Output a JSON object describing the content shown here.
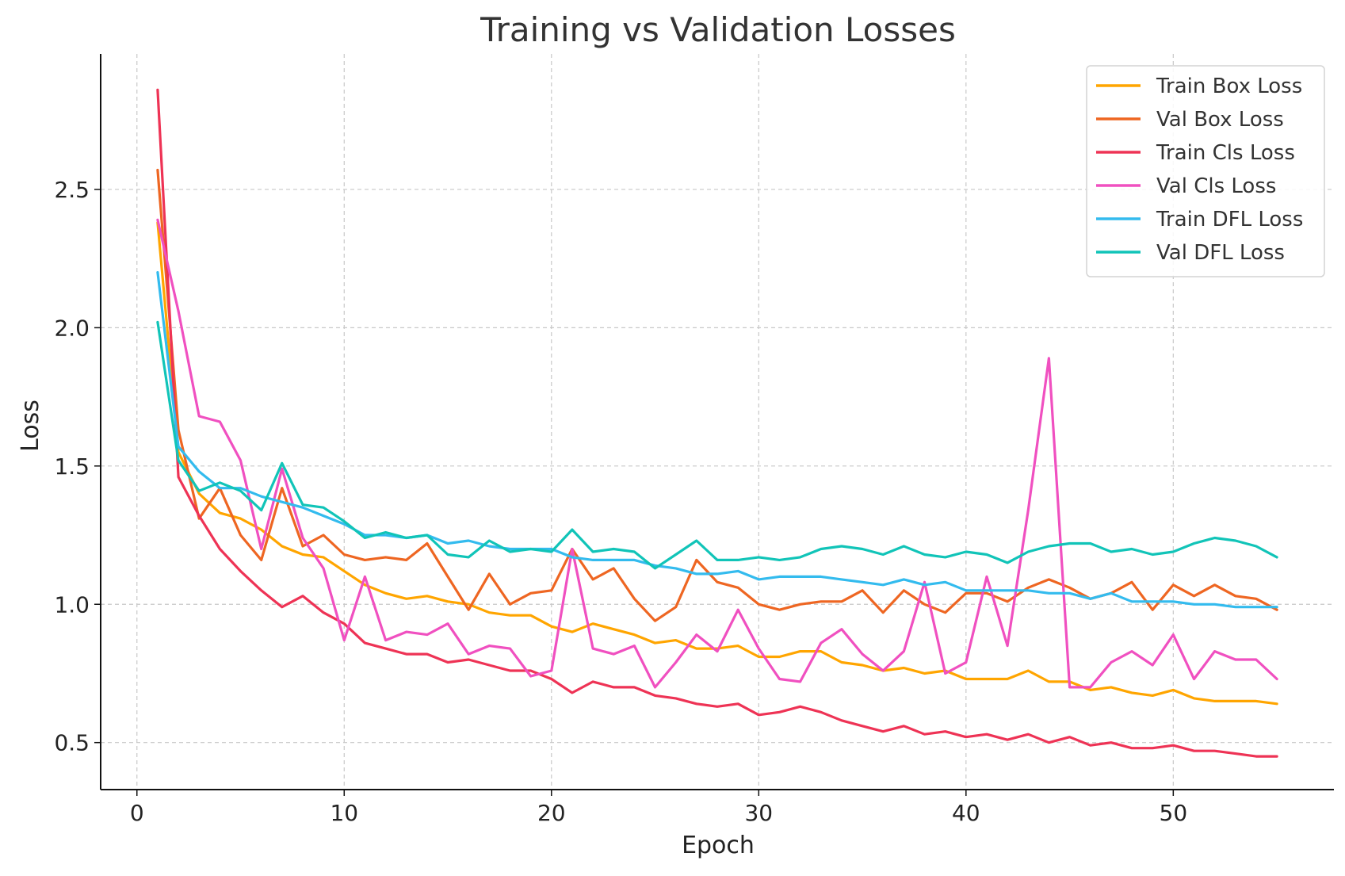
{
  "chart_data": {
    "type": "line",
    "title": "Training vs Validation Losses",
    "xlabel": "Epoch",
    "ylabel": "Loss",
    "xlim": [
      -1.75,
      57.75
    ],
    "ylim": [
      0.33,
      2.99
    ],
    "xticks": [
      0,
      10,
      20,
      30,
      40,
      50
    ],
    "yticks": [
      0.5,
      1.0,
      1.5,
      2.0,
      2.5
    ],
    "xtick_labels": [
      "0",
      "10",
      "20",
      "30",
      "40",
      "50"
    ],
    "ytick_labels": [
      "0.5",
      "1.0",
      "1.5",
      "2.0",
      "2.5"
    ],
    "grid": true,
    "legend_position": "top-right",
    "x": [
      1,
      2,
      3,
      4,
      5,
      6,
      7,
      8,
      9,
      10,
      11,
      12,
      13,
      14,
      15,
      16,
      17,
      18,
      19,
      20,
      21,
      22,
      23,
      24,
      25,
      26,
      27,
      28,
      29,
      30,
      31,
      32,
      33,
      34,
      35,
      36,
      37,
      38,
      39,
      40,
      41,
      42,
      43,
      44,
      45,
      46,
      47,
      48,
      49,
      50,
      51,
      52,
      53,
      54,
      55
    ],
    "series": [
      {
        "name": "Train Box Loss",
        "color": "#FFA500",
        "values": [
          2.38,
          1.55,
          1.4,
          1.33,
          1.31,
          1.27,
          1.21,
          1.18,
          1.17,
          1.12,
          1.07,
          1.04,
          1.02,
          1.03,
          1.01,
          1.0,
          0.97,
          0.96,
          0.96,
          0.92,
          0.9,
          0.93,
          0.91,
          0.89,
          0.86,
          0.87,
          0.84,
          0.84,
          0.85,
          0.81,
          0.81,
          0.83,
          0.83,
          0.79,
          0.78,
          0.76,
          0.77,
          0.75,
          0.76,
          0.73,
          0.73,
          0.73,
          0.76,
          0.72,
          0.72,
          0.69,
          0.7,
          0.68,
          0.67,
          0.69,
          0.66,
          0.65,
          0.65,
          0.65,
          0.64
        ]
      },
      {
        "name": "Val Box Loss",
        "color": "#EE6622",
        "values": [
          2.57,
          1.63,
          1.31,
          1.42,
          1.25,
          1.16,
          1.42,
          1.21,
          1.25,
          1.18,
          1.16,
          1.17,
          1.16,
          1.22,
          1.1,
          0.98,
          1.11,
          1.0,
          1.04,
          1.05,
          1.2,
          1.09,
          1.13,
          1.02,
          0.94,
          0.99,
          1.16,
          1.08,
          1.06,
          1.0,
          0.98,
          1.0,
          1.01,
          1.01,
          1.05,
          0.97,
          1.05,
          1.0,
          0.97,
          1.04,
          1.04,
          1.01,
          1.06,
          1.09,
          1.06,
          1.02,
          1.04,
          1.08,
          0.98,
          1.07,
          1.03,
          1.07,
          1.03,
          1.02,
          0.98
        ]
      },
      {
        "name": "Train Cls Loss",
        "color": "#EE3355",
        "values": [
          2.86,
          1.46,
          1.32,
          1.2,
          1.12,
          1.05,
          0.99,
          1.03,
          0.97,
          0.93,
          0.86,
          0.84,
          0.82,
          0.82,
          0.79,
          0.8,
          0.78,
          0.76,
          0.76,
          0.73,
          0.68,
          0.72,
          0.7,
          0.7,
          0.67,
          0.66,
          0.64,
          0.63,
          0.64,
          0.6,
          0.61,
          0.63,
          0.61,
          0.58,
          0.56,
          0.54,
          0.56,
          0.53,
          0.54,
          0.52,
          0.53,
          0.51,
          0.53,
          0.5,
          0.52,
          0.49,
          0.5,
          0.48,
          0.48,
          0.49,
          0.47,
          0.47,
          0.46,
          0.45,
          0.45
        ]
      },
      {
        "name": "Val Cls Loss",
        "color": "#F050C0",
        "values": [
          2.39,
          2.06,
          1.68,
          1.66,
          1.52,
          1.2,
          1.49,
          1.24,
          1.13,
          0.87,
          1.1,
          0.87,
          0.9,
          0.89,
          0.93,
          0.82,
          0.85,
          0.84,
          0.74,
          0.76,
          1.2,
          0.84,
          0.82,
          0.85,
          0.7,
          0.79,
          0.89,
          0.83,
          0.98,
          0.84,
          0.73,
          0.72,
          0.86,
          0.91,
          0.82,
          0.76,
          0.83,
          1.08,
          0.75,
          0.79,
          1.1,
          0.85,
          1.34,
          1.89,
          0.7,
          0.7,
          0.79,
          0.83,
          0.78,
          0.89,
          0.73,
          0.83,
          0.8,
          0.8,
          0.73
        ]
      },
      {
        "name": "Train DFL Loss",
        "color": "#33BBEE",
        "values": [
          2.2,
          1.57,
          1.48,
          1.42,
          1.42,
          1.39,
          1.37,
          1.35,
          1.32,
          1.29,
          1.25,
          1.25,
          1.24,
          1.25,
          1.22,
          1.23,
          1.21,
          1.2,
          1.2,
          1.2,
          1.17,
          1.16,
          1.16,
          1.16,
          1.14,
          1.13,
          1.11,
          1.11,
          1.12,
          1.09,
          1.1,
          1.1,
          1.1,
          1.09,
          1.08,
          1.07,
          1.09,
          1.07,
          1.08,
          1.05,
          1.05,
          1.05,
          1.05,
          1.04,
          1.04,
          1.02,
          1.04,
          1.01,
          1.01,
          1.01,
          1.0,
          1.0,
          0.99,
          0.99,
          0.99
        ]
      },
      {
        "name": "Val DFL Loss",
        "color": "#11C4B8",
        "values": [
          2.02,
          1.52,
          1.41,
          1.44,
          1.41,
          1.34,
          1.51,
          1.36,
          1.35,
          1.3,
          1.24,
          1.26,
          1.24,
          1.25,
          1.18,
          1.17,
          1.23,
          1.19,
          1.2,
          1.19,
          1.27,
          1.19,
          1.2,
          1.19,
          1.13,
          1.18,
          1.23,
          1.16,
          1.16,
          1.17,
          1.16,
          1.17,
          1.2,
          1.21,
          1.2,
          1.18,
          1.21,
          1.18,
          1.17,
          1.19,
          1.18,
          1.15,
          1.19,
          1.21,
          1.22,
          1.22,
          1.19,
          1.2,
          1.18,
          1.19,
          1.22,
          1.24,
          1.23,
          1.21,
          1.17
        ]
      }
    ]
  }
}
